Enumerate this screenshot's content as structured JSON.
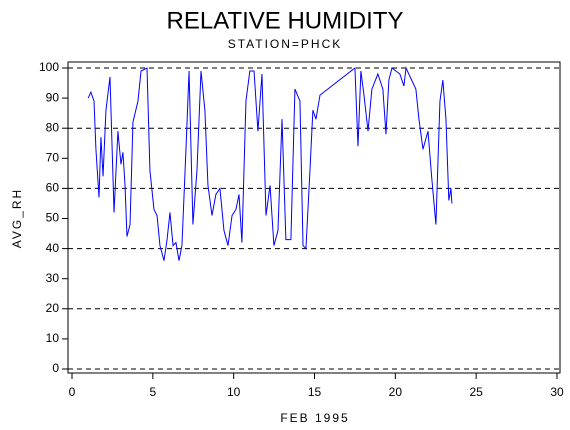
{
  "chart_data": {
    "type": "line",
    "title": "RELATIVE HUMIDITY",
    "subtitle": "STATION=PHCK",
    "x_label": "FEB 1995",
    "y_label": "AVG_RH",
    "xlim": [
      0,
      30
    ],
    "xticks": [
      0,
      5,
      10,
      15,
      20,
      25,
      30
    ],
    "ylim": [
      0,
      100
    ],
    "yticks": [
      0,
      10,
      20,
      30,
      40,
      50,
      60,
      70,
      80,
      90,
      100
    ],
    "grid": true,
    "grid_values": [
      0,
      20,
      40,
      60,
      80,
      100
    ],
    "series": [
      {
        "name": "AVG_RH",
        "color": "#0000ff",
        "x": [
          1.0,
          1.17,
          1.36,
          1.48,
          1.67,
          1.79,
          1.92,
          2.1,
          2.35,
          2.6,
          2.84,
          3.03,
          3.15,
          3.28,
          3.4,
          3.59,
          3.77,
          4.08,
          4.27,
          4.64,
          4.82,
          5.07,
          5.26,
          5.44,
          5.69,
          5.88,
          6.06,
          6.25,
          6.43,
          6.62,
          6.8,
          7.05,
          7.24,
          7.48,
          7.73,
          7.98,
          8.22,
          8.41,
          8.66,
          8.9,
          9.15,
          9.4,
          9.65,
          9.9,
          10.14,
          10.33,
          10.51,
          10.76,
          11.0,
          11.26,
          11.5,
          11.75,
          12.0,
          12.25,
          12.49,
          12.74,
          12.99,
          13.23,
          13.54,
          13.79,
          14.1,
          14.29,
          14.47,
          14.72,
          14.9,
          15.09,
          15.34,
          17.5,
          17.69,
          17.87,
          18.06,
          18.31,
          18.55,
          18.92,
          19.23,
          19.42,
          19.6,
          19.79,
          20.28,
          20.53,
          20.66,
          21.27,
          21.46,
          21.71,
          22.02,
          22.26,
          22.51,
          22.76,
          22.94,
          23.13,
          23.31,
          23.44,
          23.5
        ],
        "values": [
          90,
          92,
          89,
          73,
          57,
          77,
          64,
          86,
          97,
          52,
          79,
          68,
          72,
          61,
          44,
          48,
          82,
          89,
          99,
          100,
          66,
          53,
          51,
          41,
          36,
          43,
          52,
          41,
          42,
          36,
          41,
          73,
          99,
          48,
          66,
          99,
          86,
          61,
          51,
          58,
          60,
          46,
          41,
          51,
          53,
          58,
          42,
          89,
          99,
          99,
          79,
          98,
          51,
          61,
          41,
          46,
          83,
          43,
          43,
          93,
          89,
          41,
          40,
          66,
          86,
          83,
          91,
          100,
          74,
          99,
          91,
          79,
          93,
          98,
          93,
          78,
          96,
          100,
          98,
          94,
          100,
          93,
          83,
          73,
          79,
          63,
          48,
          89,
          96,
          83,
          56,
          60,
          55
        ]
      }
    ]
  }
}
